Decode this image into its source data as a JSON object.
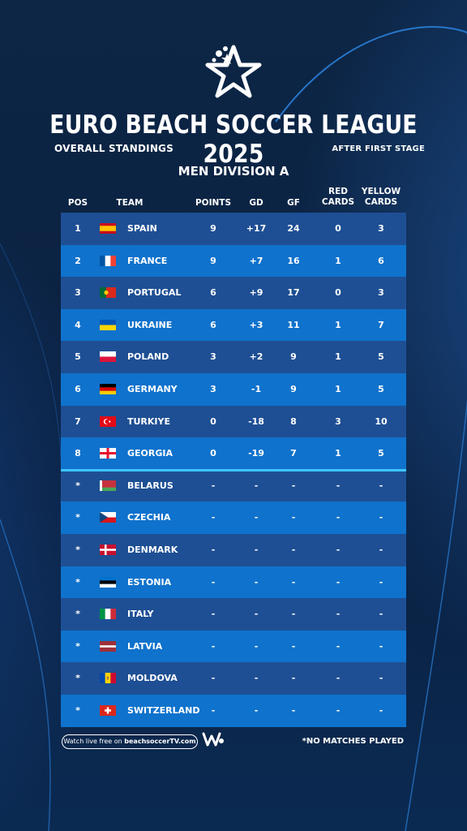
{
  "header": {
    "title": "EURO BEACH SOCCER LEAGUE 2025",
    "subtitle_left": "OVERALL STANDINGS",
    "subtitle_right": "AFTER FIRST STAGE",
    "division": "MEN DIVISION A"
  },
  "columns": {
    "pos": "POS",
    "team": "TEAM",
    "points": "POINTS",
    "gd": "GD",
    "gf": "GF",
    "red_1": "RED",
    "red_2": "CARDS",
    "yellow_1": "YELLOW",
    "yellow_2": "CARDS"
  },
  "rows": [
    {
      "pos": "1",
      "team": "SPAIN",
      "flag": "spain-flag-icon",
      "points": "9",
      "gd": "+17",
      "gf": "24",
      "red": "0",
      "yellow": "3"
    },
    {
      "pos": "2",
      "team": "FRANCE",
      "flag": "france-flag-icon",
      "points": "9",
      "gd": "+7",
      "gf": "16",
      "red": "1",
      "yellow": "6"
    },
    {
      "pos": "3",
      "team": "PORTUGAL",
      "flag": "portugal-flag-icon",
      "points": "6",
      "gd": "+9",
      "gf": "17",
      "red": "0",
      "yellow": "3"
    },
    {
      "pos": "4",
      "team": "UKRAINE",
      "flag": "ukraine-flag-icon",
      "points": "6",
      "gd": "+3",
      "gf": "11",
      "red": "1",
      "yellow": "7"
    },
    {
      "pos": "5",
      "team": "POLAND",
      "flag": "poland-flag-icon",
      "points": "3",
      "gd": "+2",
      "gf": "9",
      "red": "1",
      "yellow": "5"
    },
    {
      "pos": "6",
      "team": "GERMANY",
      "flag": "germany-flag-icon",
      "points": "3",
      "gd": "-1",
      "gf": "9",
      "red": "1",
      "yellow": "5"
    },
    {
      "pos": "7",
      "team": "TURKIYE",
      "flag": "turkiye-flag-icon",
      "points": "0",
      "gd": "-18",
      "gf": "8",
      "red": "3",
      "yellow": "10"
    },
    {
      "pos": "8",
      "team": "GEORGIA",
      "flag": "georgia-flag-icon",
      "points": "0",
      "gd": "-19",
      "gf": "7",
      "red": "1",
      "yellow": "5"
    },
    {
      "pos": "*",
      "team": "BELARUS",
      "flag": "belarus-flag-icon",
      "points": "-",
      "gd": "-",
      "gf": "-",
      "red": "-",
      "yellow": "-"
    },
    {
      "pos": "*",
      "team": "CZECHIA",
      "flag": "czechia-flag-icon",
      "points": "-",
      "gd": "-",
      "gf": "-",
      "red": "-",
      "yellow": "-"
    },
    {
      "pos": "*",
      "team": "DENMARK",
      "flag": "denmark-flag-icon",
      "points": "-",
      "gd": "-",
      "gf": "-",
      "red": "-",
      "yellow": "-"
    },
    {
      "pos": "*",
      "team": "ESTONIA",
      "flag": "estonia-flag-icon",
      "points": "-",
      "gd": "-",
      "gf": "-",
      "red": "-",
      "yellow": "-"
    },
    {
      "pos": "*",
      "team": "ITALY",
      "flag": "italy-flag-icon",
      "points": "-",
      "gd": "-",
      "gf": "-",
      "red": "-",
      "yellow": "-"
    },
    {
      "pos": "*",
      "team": "LATVIA",
      "flag": "latvia-flag-icon",
      "points": "-",
      "gd": "-",
      "gf": "-",
      "red": "-",
      "yellow": "-"
    },
    {
      "pos": "*",
      "team": "MOLDOVA",
      "flag": "moldova-flag-icon",
      "points": "-",
      "gd": "-",
      "gf": "-",
      "red": "-",
      "yellow": "-"
    },
    {
      "pos": "*",
      "team": "SWITZERLAND",
      "flag": "switzerland-flag-icon",
      "points": "-",
      "gd": "-",
      "gf": "-",
      "red": "-",
      "yellow": "-"
    }
  ],
  "footer": {
    "watch_prefix": "Watch live free on ",
    "watch_site": "beachsoccerTV.com",
    "note": "*NO MATCHES PLAYED"
  },
  "colors": {
    "background": "#0b1f3a",
    "row_dark": "#1e4f94",
    "row_light": "#0f72cc",
    "divider": "#3ec5ff"
  }
}
